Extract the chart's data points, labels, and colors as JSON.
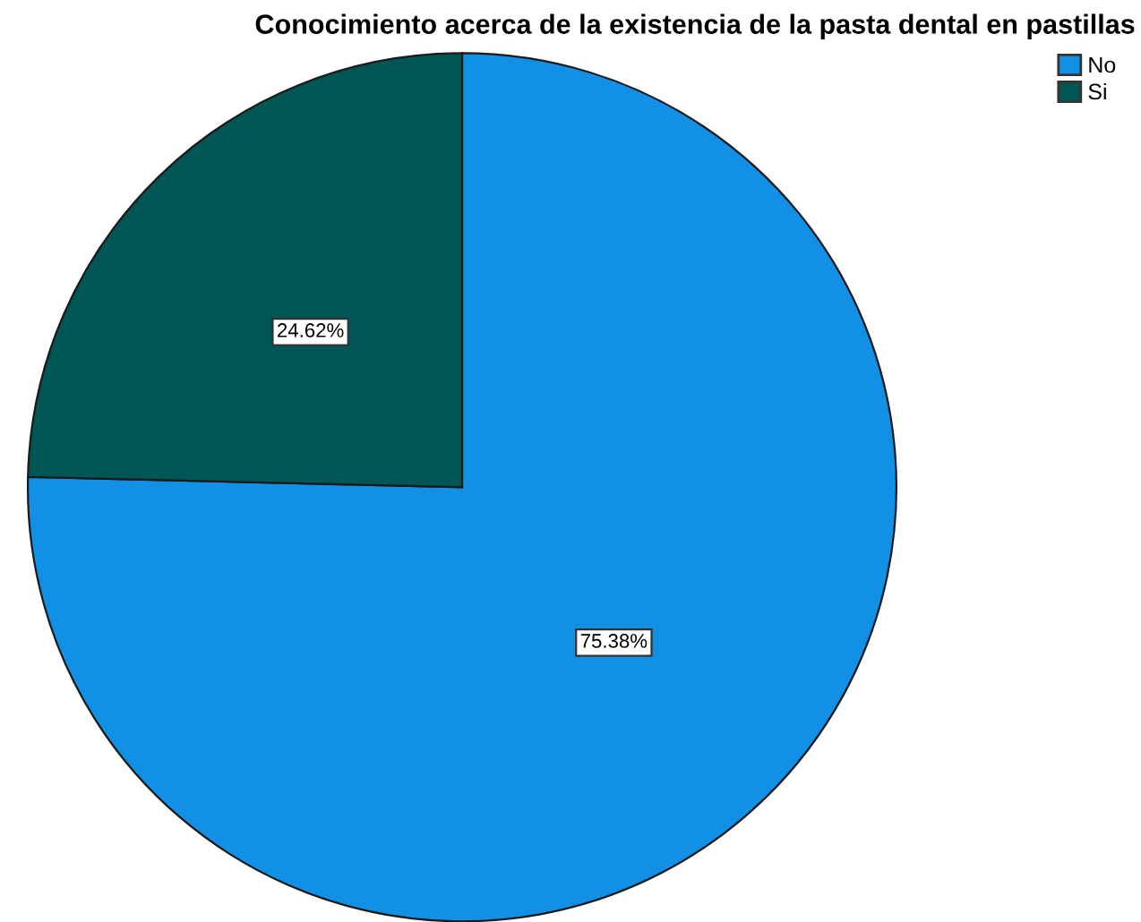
{
  "chart_data": {
    "type": "pie",
    "title": "Conocimiento acerca de la existencia de la pasta dental en pastillas",
    "categories": [
      "No",
      "Si"
    ],
    "values": [
      75.38,
      24.62
    ],
    "colors": [
      "#1190e6",
      "#005655"
    ],
    "value_labels": [
      "75.38%",
      "24.62%"
    ],
    "legend": "top right"
  }
}
